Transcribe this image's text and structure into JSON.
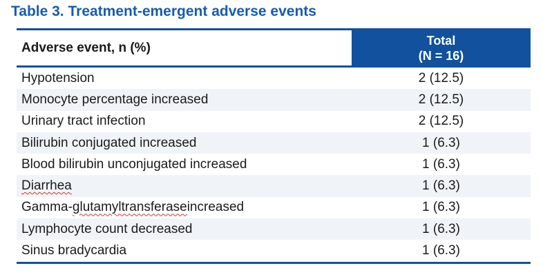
{
  "title": "Table 3. Treatment-emergent adverse events",
  "colors": {
    "title_blue": "#175CAD",
    "header_blue": "#11519D",
    "rule_blue": "#11519D",
    "stripe_row": "#F0F4F9",
    "body_text": "#1A1A1A",
    "header_text_on_blue": "#FFFFFF",
    "spellcheck_red": "#D93025"
  },
  "table": {
    "columns": [
      {
        "label": "Adverse event, n (%)"
      },
      {
        "label_line1": "Total",
        "label_line2": "(N = 16)"
      }
    ],
    "rows": [
      {
        "event": "Hypotension",
        "value": "2 (12.5)"
      },
      {
        "event": "Monocyte percentage increased",
        "value": "2 (12.5)"
      },
      {
        "event": "Urinary tract infection",
        "value": "2 (12.5)"
      },
      {
        "event": "Bilirubin conjugated increased",
        "value": "1 (6.3)"
      },
      {
        "event": "Blood bilirubin unconjugated increased",
        "value": "1 (6.3)"
      },
      {
        "event": "Diarrhea",
        "value": "1 (6.3)",
        "misspelled": "Diarrhea"
      },
      {
        "event": "Gamma-glutamyltransferase increased",
        "value": "1 (6.3)",
        "misspelled": "glutamyltransferase"
      },
      {
        "event": "Lymphocyte count decreased",
        "value": "1 (6.3)"
      },
      {
        "event": "Sinus bradycardia",
        "value": "1 (6.3)"
      }
    ]
  }
}
